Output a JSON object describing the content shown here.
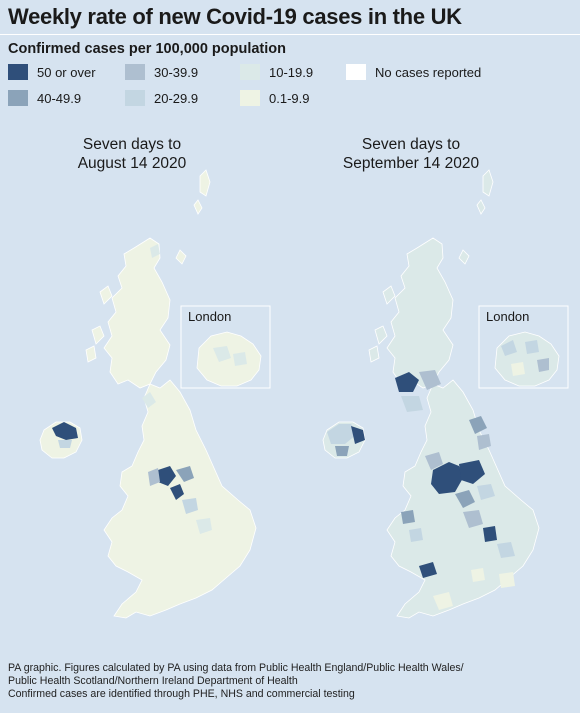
{
  "title": "Weekly rate of new Covid-19 cases in the UK",
  "subtitle": "Confirmed cases per 100,000 population",
  "legend": [
    {
      "label": "50 or over",
      "color": "#2f4f7a"
    },
    {
      "label": "40-49.9",
      "color": "#8ba3b9"
    },
    {
      "label": "30-39.9",
      "color": "#aebfd0"
    },
    {
      "label": "20-29.9",
      "color": "#c3d6e2"
    },
    {
      "label": "10-19.9",
      "color": "#dbe9e8"
    },
    {
      "label": "0.1-9.9",
      "color": "#eef3e4"
    },
    {
      "label": "No cases reported",
      "color": "#ffffff"
    }
  ],
  "maps": [
    {
      "title_line1": "Seven days to",
      "title_line2": "August 14 2020",
      "inset_label": "London"
    },
    {
      "title_line1": "Seven days to",
      "title_line2": "September 14 2020",
      "inset_label": "London"
    }
  ],
  "footer": {
    "line1": "PA graphic. Figures calculated by PA using data from Public Health England/Public Health Wales/",
    "line2": "Public Health Scotland/Northern Ireland Department of Health",
    "line3": "Confirmed cases are identified through PHE, NHS and commercial testing"
  }
}
